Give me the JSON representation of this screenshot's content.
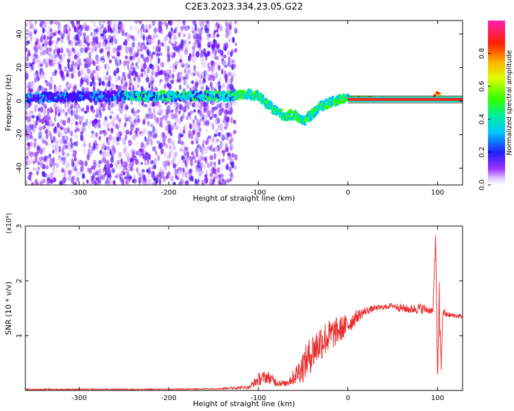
{
  "title": "C2E3.2023.334.23.05.G22",
  "colors": {
    "snr_line": "#e83030",
    "spectrum_point": "#8a2be2",
    "axis": "#000000"
  },
  "chart_data": [
    {
      "type": "heatmap",
      "name": "spectrogram",
      "xlabel": "Height of straight line (km)",
      "ylabel": "Frequency (Hz)",
      "xlim": [
        -360,
        128
      ],
      "ylim": [
        -50,
        48
      ],
      "xticks": [
        -300,
        -200,
        -100,
        0,
        100
      ],
      "yticks": [
        -40,
        -20,
        0,
        20,
        40
      ],
      "colorbar": {
        "label": "Normalized spectral amplitude",
        "range": [
          0,
          1
        ],
        "ticks": [
          0.0,
          0.2,
          0.4,
          0.6,
          0.8
        ],
        "colormap": "purple-blue-cyan-green-yellow-orange-red-pink"
      },
      "ridge": {
        "description_points_x": [
          -360,
          -250,
          -200,
          -150,
          -125,
          -110,
          -100,
          -90,
          -80,
          -70,
          -60,
          -50,
          -40,
          -30,
          -20,
          -10,
          0,
          50,
          95,
          100,
          105,
          128
        ],
        "description_points_y": [
          2,
          3,
          3,
          3,
          3,
          4,
          3,
          -2,
          -6,
          -9,
          -8,
          -12,
          -8,
          -3,
          -1,
          1,
          2,
          1,
          1,
          6,
          1,
          1
        ]
      }
    },
    {
      "type": "line",
      "name": "snr",
      "xlabel": "Height of straight line (km)",
      "ylabel": "SNR (10 * v/v)",
      "yscale_label": "(x10⁴)",
      "xlim": [
        -360,
        128
      ],
      "ylim": [
        0,
        3
      ],
      "xticks": [
        -300,
        -200,
        -100,
        0,
        100
      ],
      "yticks": [
        1,
        2,
        3
      ],
      "series": [
        {
          "color": "#e83030",
          "envelope_x": [
            -360,
            -200,
            -150,
            -110,
            -100,
            -90,
            -80,
            -70,
            -60,
            -50,
            -40,
            -30,
            -20,
            -10,
            0,
            10,
            20,
            30,
            40,
            50,
            60,
            70,
            80,
            90,
            95,
            98,
            100,
            102,
            104,
            106,
            110,
            128
          ],
          "envelope_y": [
            0.02,
            0.02,
            0.03,
            0.06,
            0.2,
            0.25,
            0.15,
            0.12,
            0.25,
            0.45,
            0.7,
            0.9,
            1.0,
            1.1,
            1.2,
            1.35,
            1.45,
            1.5,
            1.52,
            1.55,
            1.5,
            1.48,
            1.5,
            1.47,
            1.45,
            2.9,
            0.2,
            1.5,
            0.4,
            1.45,
            1.38,
            1.35
          ],
          "noise": [
            0.01,
            0.01,
            0.01,
            0.03,
            0.12,
            0.12,
            0.08,
            0.05,
            0.15,
            0.3,
            0.35,
            0.35,
            0.3,
            0.25,
            0.2,
            0.12,
            0.08,
            0.05,
            0.05,
            0.05,
            0.08,
            0.08,
            0.1,
            0.08,
            0.05,
            0.2,
            0.05,
            0.5,
            0.1,
            0.1,
            0.05,
            0.04
          ]
        }
      ]
    }
  ]
}
